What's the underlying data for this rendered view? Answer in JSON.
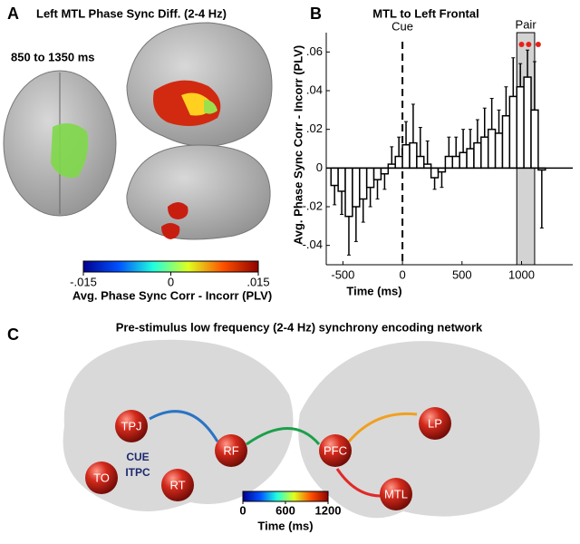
{
  "panel_a": {
    "letter": "A",
    "title": "Left MTL Phase Sync Diff. (2-4 Hz)",
    "window": "850 to 1350 ms",
    "colorbar": {
      "label": "Avg. Phase Sync Corr - Incorr (PLV)",
      "lim": [
        -0.015,
        0.015
      ],
      "ticks": [
        {
          "value": -0.015,
          "label": "-.015"
        },
        0,
        {
          "value": 0.015,
          "label": ".015"
        }
      ]
    }
  },
  "chart_data": {
    "type": "bar",
    "panel_label": "B",
    "title": "MTL to Left Frontal",
    "x_label": "Time (ms)",
    "y_label": "Avg. Phase Sync Corr - Incorr (PLV)",
    "x": [
      -570,
      -510,
      -450,
      -390,
      -330,
      -270,
      -210,
      -150,
      -90,
      -30,
      30,
      90,
      150,
      210,
      270,
      330,
      390,
      450,
      510,
      570,
      630,
      690,
      750,
      810,
      870,
      930,
      990,
      1050,
      1110,
      1170
    ],
    "values": [
      -0.009,
      -0.012,
      -0.025,
      -0.02,
      -0.016,
      -0.01,
      -0.006,
      -0.003,
      0.002,
      0.006,
      0.012,
      0.013,
      0.006,
      0.002,
      -0.005,
      -0.002,
      0.006,
      0.006,
      0.008,
      0.01,
      0.013,
      0.016,
      0.02,
      0.018,
      0.027,
      0.037,
      0.042,
      0.047,
      0.03,
      -0.001
    ],
    "errors": [
      0.01,
      0.012,
      0.02,
      0.018,
      0.012,
      0.01,
      0.01,
      0.008,
      0.009,
      0.01,
      0.012,
      0.02,
      0.015,
      0.012,
      0.006,
      0.008,
      0.01,
      0.01,
      0.012,
      0.01,
      0.012,
      0.015,
      0.016,
      0.012,
      0.015,
      0.02,
      0.012,
      0.014,
      0.025,
      0.03
    ],
    "bar_width": 60,
    "color": "#ffffff",
    "xlim": [
      -640,
      1430
    ],
    "ylim": [
      -0.05,
      0.07
    ],
    "xticks": [
      -500,
      0,
      500,
      1000
    ],
    "yticks": [
      {
        "value": -0.04,
        "label": "-.04"
      },
      {
        "value": -0.02,
        "label": "-.02"
      },
      0,
      {
        "value": 0.02,
        "label": ".02"
      },
      {
        "value": 0.04,
        "label": ".04"
      },
      {
        "value": 0.06,
        "label": ".06"
      }
    ],
    "cue": {
      "label": "Cue",
      "value": 0
    },
    "pair": {
      "label": "Pair",
      "range": [
        960,
        1110
      ]
    },
    "significant_x": [
      1000,
      1060,
      1140
    ]
  },
  "panel_c": {
    "letter": "C",
    "title": "Pre-stimulus low frequency (2-4 Hz) synchrony encoding network",
    "nodes": [
      "TPJ",
      "RF",
      "TO",
      "RT",
      "PFC",
      "LP",
      "MTL"
    ],
    "note": [
      "CUE",
      "ITPC"
    ],
    "colorbar": {
      "label": "Time (ms)",
      "lim": [
        0,
        1200
      ],
      "ticks": [
        0,
        600,
        1200
      ]
    }
  }
}
